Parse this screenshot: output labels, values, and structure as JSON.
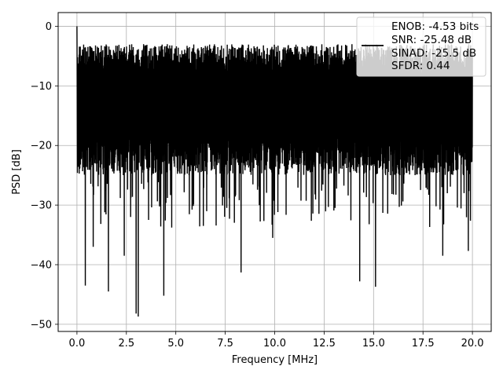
{
  "chart_data": {
    "type": "line",
    "title": "",
    "xlabel": "Frequency [MHz]",
    "ylabel": "PSD [dB]",
    "xlim": [
      -0.95,
      20.95
    ],
    "ylim": [
      -51.2,
      2.3
    ],
    "x_ticks": [
      0.0,
      2.5,
      5.0,
      7.5,
      10.0,
      12.5,
      15.0,
      17.5,
      20.0
    ],
    "x_tick_labels": [
      "0.0",
      "2.5",
      "5.0",
      "7.5",
      "10.0",
      "12.5",
      "15.0",
      "17.5",
      "20.0"
    ],
    "y_ticks": [
      0,
      -10,
      -20,
      -30,
      -40,
      -50
    ],
    "y_tick_labels": [
      "0",
      "−10",
      "−20",
      "−30",
      "−40",
      "−50"
    ],
    "grid": true,
    "legend_position": "top-right",
    "series": [
      {
        "color": "#000000",
        "x_range": [
          0,
          20
        ],
        "band_top": -7,
        "band_bottom": -24,
        "peak": {
          "x": 0.0,
          "y": 0.0
        },
        "deep_dips": [
          {
            "x": 0.42,
            "y": -43.5
          },
          {
            "x": 0.82,
            "y": -37.0
          },
          {
            "x": 1.6,
            "y": -44.5
          },
          {
            "x": 2.4,
            "y": -38.5
          },
          {
            "x": 3.0,
            "y": -48.2
          },
          {
            "x": 3.1,
            "y": -48.7
          },
          {
            "x": 4.4,
            "y": -45.2
          },
          {
            "x": 6.4,
            "y": -33.5
          },
          {
            "x": 8.3,
            "y": -41.3
          },
          {
            "x": 9.9,
            "y": -35.5
          },
          {
            "x": 14.3,
            "y": -42.8
          },
          {
            "x": 15.1,
            "y": -43.7
          },
          {
            "x": 18.5,
            "y": -38.5
          },
          {
            "x": 19.8,
            "y": -37.7
          }
        ]
      }
    ],
    "legend": [
      "ENOB: -4.53 bits",
      "SNR: -25.48 dB",
      "SINAD: -25.5 dB",
      "SFDR: 0.44"
    ]
  }
}
